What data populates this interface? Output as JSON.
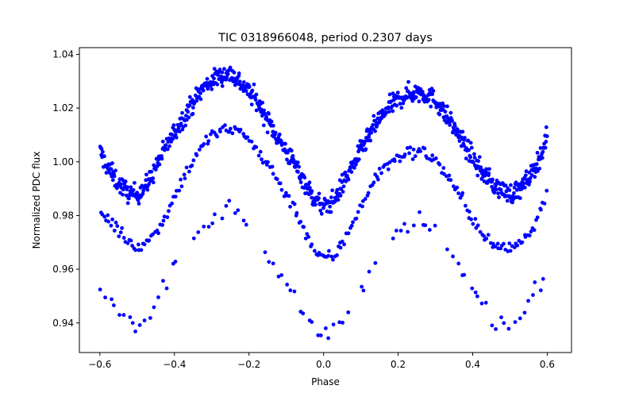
{
  "chart_data": {
    "type": "scatter",
    "title": "TIC 0318966048, period 0.2307 days",
    "xlabel": "Phase",
    "ylabel": "Normalized PDC flux",
    "xlim": [
      -0.655,
      0.665
    ],
    "ylim": [
      0.929,
      1.0425
    ],
    "xticks": [
      -0.6,
      -0.4,
      -0.2,
      0.0,
      0.2,
      0.4,
      0.6
    ],
    "xtick_labels": [
      "−0.6",
      "−0.4",
      "−0.2",
      "0.0",
      "0.2",
      "0.4",
      "0.6"
    ],
    "yticks": [
      0.94,
      0.96,
      0.98,
      1.0,
      1.02,
      1.04
    ],
    "ytick_labels": [
      "0.94",
      "0.96",
      "0.98",
      "1.00",
      "1.02",
      "1.04"
    ],
    "grid": false,
    "marker_color": "#0000ff",
    "x_range": [
      -0.6,
      0.6
    ],
    "series": [
      {
        "description": "dense band",
        "points_per_unit_phase": 700,
        "spread": 0.0018,
        "curve": [
          [
            -0.6,
            1.004
          ],
          [
            -0.58,
            0.998
          ],
          [
            -0.55,
            0.992
          ],
          [
            -0.52,
            0.988
          ],
          [
            -0.5,
            0.988
          ],
          [
            -0.47,
            0.992
          ],
          [
            -0.44,
            1.001
          ],
          [
            -0.4,
            1.011
          ],
          [
            -0.36,
            1.02
          ],
          [
            -0.32,
            1.028
          ],
          [
            -0.28,
            1.032
          ],
          [
            -0.25,
            1.033
          ],
          [
            -0.22,
            1.029
          ],
          [
            -0.18,
            1.023
          ],
          [
            -0.14,
            1.013
          ],
          [
            -0.1,
            1.004
          ],
          [
            -0.06,
            0.995
          ],
          [
            -0.03,
            0.987
          ],
          [
            0.0,
            0.983
          ],
          [
            0.03,
            0.986
          ],
          [
            0.06,
            0.994
          ],
          [
            0.1,
            1.004
          ],
          [
            0.14,
            1.014
          ],
          [
            0.18,
            1.021
          ],
          [
            0.22,
            1.025
          ],
          [
            0.26,
            1.026
          ],
          [
            0.3,
            1.023
          ],
          [
            0.34,
            1.015
          ],
          [
            0.38,
            1.006
          ],
          [
            0.42,
            0.997
          ],
          [
            0.46,
            0.991
          ],
          [
            0.5,
            0.988
          ],
          [
            0.53,
            0.99
          ],
          [
            0.56,
            0.996
          ],
          [
            0.59,
            1.005
          ],
          [
            0.6,
            1.01
          ]
        ]
      },
      {
        "description": "middle band",
        "points_per_unit_phase": 220,
        "spread": 0.0012,
        "curve": [
          [
            -0.6,
            0.982
          ],
          [
            -0.56,
            0.976
          ],
          [
            -0.52,
            0.97
          ],
          [
            -0.49,
            0.968
          ],
          [
            -0.46,
            0.972
          ],
          [
            -0.42,
            0.981
          ],
          [
            -0.38,
            0.993
          ],
          [
            -0.34,
            1.003
          ],
          [
            -0.3,
            1.01
          ],
          [
            -0.26,
            1.012
          ],
          [
            -0.22,
            1.011
          ],
          [
            -0.18,
            1.005
          ],
          [
            -0.14,
            0.997
          ],
          [
            -0.1,
            0.988
          ],
          [
            -0.06,
            0.978
          ],
          [
            -0.03,
            0.968
          ],
          [
            0.0,
            0.964
          ],
          [
            0.03,
            0.965
          ],
          [
            0.06,
            0.972
          ],
          [
            0.1,
            0.984
          ],
          [
            0.14,
            0.994
          ],
          [
            0.18,
            1.0
          ],
          [
            0.22,
            1.003
          ],
          [
            0.26,
            1.004
          ],
          [
            0.3,
            1.001
          ],
          [
            0.34,
            0.993
          ],
          [
            0.38,
            0.984
          ],
          [
            0.42,
            0.974
          ],
          [
            0.46,
            0.968
          ],
          [
            0.5,
            0.968
          ],
          [
            0.53,
            0.97
          ],
          [
            0.56,
            0.975
          ],
          [
            0.59,
            0.985
          ],
          [
            0.6,
            0.99
          ]
        ]
      },
      {
        "description": "sparse lower band",
        "points_per_unit_phase": 85,
        "spread": 0.0015,
        "gaps": [
          [
            -0.39,
            -0.35
          ],
          [
            -0.2,
            -0.16
          ],
          [
            0.07,
            0.1
          ],
          [
            0.14,
            0.18
          ],
          [
            0.3,
            0.32
          ]
        ],
        "curve": [
          [
            -0.6,
            0.955
          ],
          [
            -0.57,
            0.947
          ],
          [
            -0.53,
            0.944
          ],
          [
            -0.5,
            0.939
          ],
          [
            -0.47,
            0.941
          ],
          [
            -0.44,
            0.95
          ],
          [
            -0.41,
            0.958
          ],
          [
            -0.38,
            0.966
          ],
          [
            -0.34,
            0.973
          ],
          [
            -0.3,
            0.978
          ],
          [
            -0.26,
            0.984
          ],
          [
            -0.23,
            0.983
          ],
          [
            -0.2,
            0.978
          ],
          [
            -0.16,
            0.968
          ],
          [
            -0.12,
            0.958
          ],
          [
            -0.08,
            0.95
          ],
          [
            -0.05,
            0.942
          ],
          [
            -0.02,
            0.935
          ],
          [
            0.0,
            0.936
          ],
          [
            0.03,
            0.937
          ],
          [
            0.06,
            0.943
          ],
          [
            0.1,
            0.952
          ],
          [
            0.14,
            0.962
          ],
          [
            0.18,
            0.972
          ],
          [
            0.22,
            0.975
          ],
          [
            0.26,
            0.977
          ],
          [
            0.3,
            0.974
          ],
          [
            0.34,
            0.967
          ],
          [
            0.38,
            0.957
          ],
          [
            0.42,
            0.947
          ],
          [
            0.46,
            0.941
          ],
          [
            0.5,
            0.939
          ],
          [
            0.53,
            0.943
          ],
          [
            0.56,
            0.95
          ],
          [
            0.59,
            0.958
          ],
          [
            0.6,
            0.96
          ]
        ]
      }
    ]
  }
}
